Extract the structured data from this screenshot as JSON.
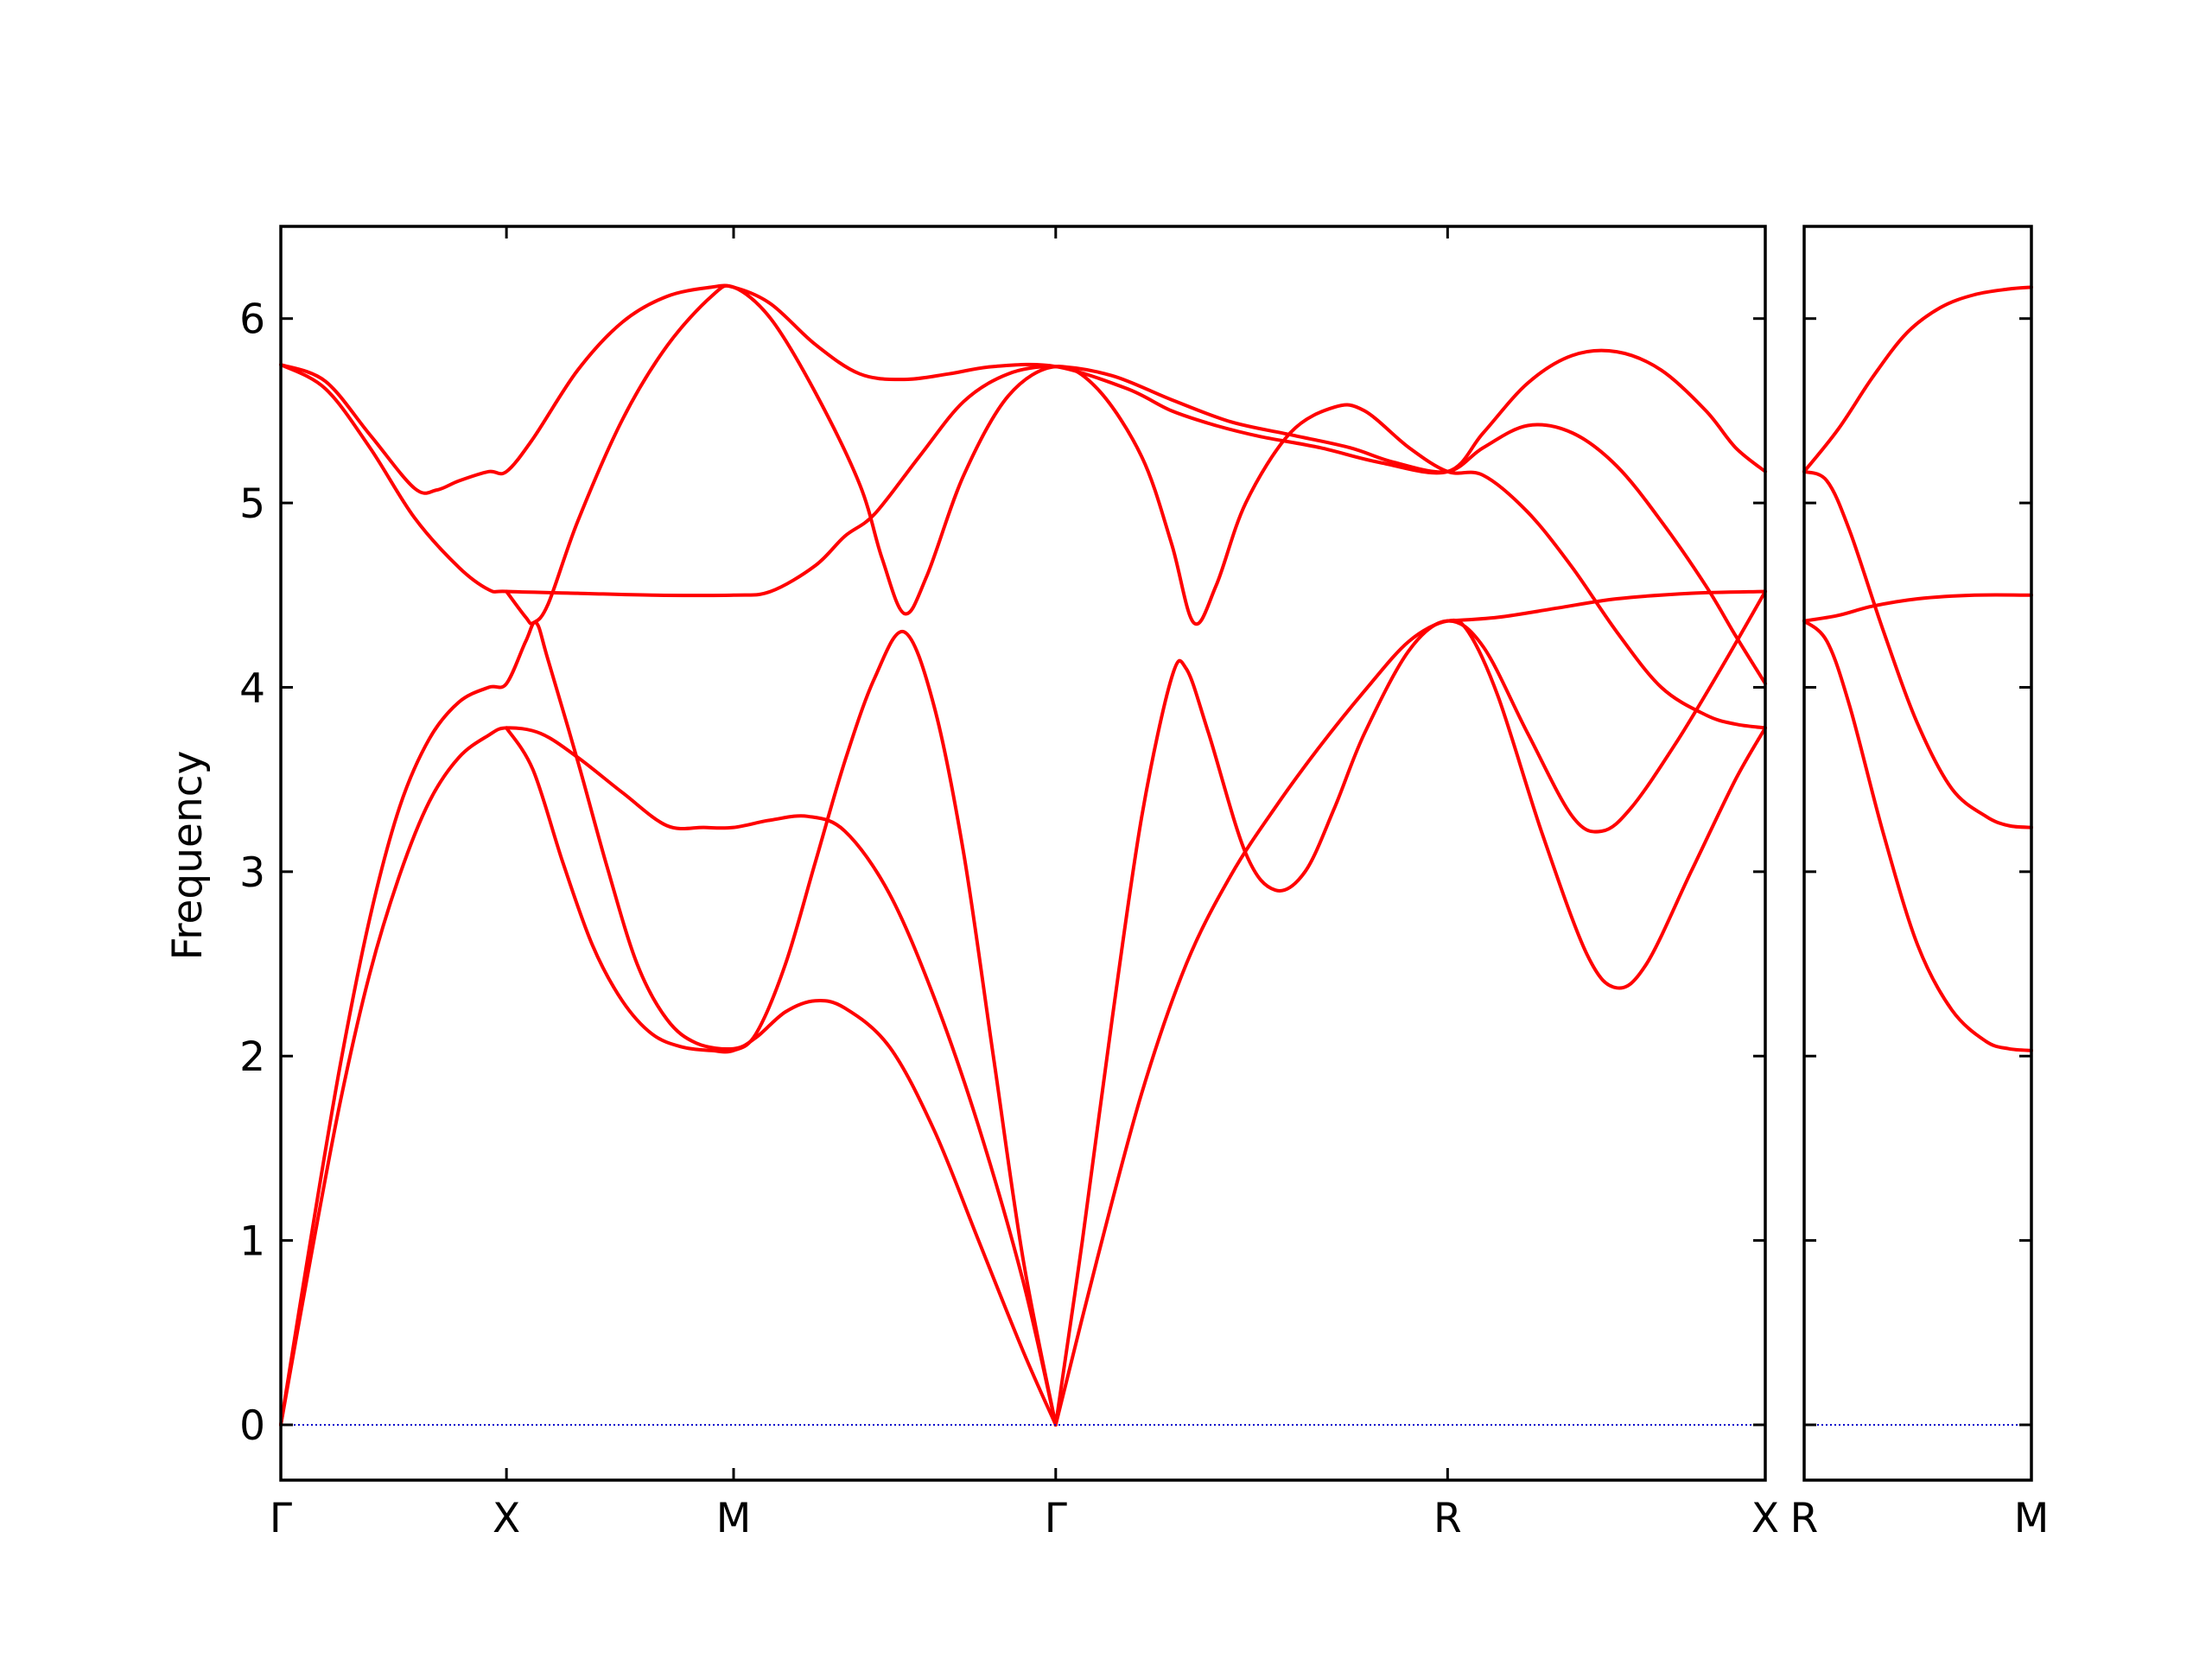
{
  "chart_data": {
    "type": "line",
    "ylabel": "Frequency",
    "xlabel": "",
    "title": "",
    "ylim": [
      -0.3,
      6.5
    ],
    "yticks": [
      0,
      1,
      2,
      3,
      4,
      5,
      6
    ],
    "ytick_labels": [
      "0",
      "1",
      "2",
      "3",
      "4",
      "5",
      "6"
    ],
    "grid": false,
    "legend": "none",
    "colors": {
      "bands": "#ff0000",
      "zero_line": "#0000cc",
      "axes": "#000000"
    },
    "panels": [
      {
        "id": "main",
        "xlim": [
          0,
          1
        ],
        "high_symmetry_points": [
          {
            "label": "Γ",
            "x": 0.0
          },
          {
            "label": "X",
            "x": 0.152
          },
          {
            "label": "M",
            "x": 0.305
          },
          {
            "label": "Γ",
            "x": 0.522
          },
          {
            "label": "R",
            "x": 0.786
          },
          {
            "label": "X",
            "x": 1.0
          }
        ],
        "branches": [
          [
            [
              0,
              0
            ],
            [
              0.02,
              0.9
            ],
            [
              0.04,
              1.75
            ],
            [
              0.06,
              2.45
            ],
            [
              0.08,
              2.98
            ],
            [
              0.1,
              3.38
            ],
            [
              0.12,
              3.62
            ],
            [
              0.14,
              3.74
            ],
            [
              0.152,
              3.78
            ],
            [
              0.175,
              3.75
            ],
            [
              0.2,
              3.62
            ],
            [
              0.23,
              3.43
            ],
            [
              0.26,
              3.25
            ],
            [
              0.285,
              3.24
            ],
            [
              0.305,
              3.24
            ],
            [
              0.33,
              3.28
            ],
            [
              0.355,
              3.3
            ],
            [
              0.38,
              3.22
            ],
            [
              0.41,
              2.88
            ],
            [
              0.44,
              2.32
            ],
            [
              0.47,
              1.62
            ],
            [
              0.5,
              0.78
            ],
            [
              0.522,
              0
            ]
          ],
          [
            [
              0,
              0
            ],
            [
              0.02,
              1.0
            ],
            [
              0.04,
              1.95
            ],
            [
              0.06,
              2.75
            ],
            [
              0.08,
              3.35
            ],
            [
              0.1,
              3.72
            ],
            [
              0.12,
              3.92
            ],
            [
              0.14,
              4.0
            ],
            [
              0.152,
              4.02
            ],
            [
              0.165,
              4.25
            ],
            [
              0.172,
              4.35
            ],
            [
              0.18,
              4.15
            ],
            [
              0.2,
              3.6
            ],
            [
              0.22,
              3.02
            ],
            [
              0.24,
              2.5
            ],
            [
              0.26,
              2.2
            ],
            [
              0.28,
              2.07
            ],
            [
              0.305,
              2.04
            ],
            [
              0.32,
              2.1
            ],
            [
              0.34,
              2.24
            ],
            [
              0.36,
              2.3
            ],
            [
              0.38,
              2.26
            ],
            [
              0.41,
              2.05
            ],
            [
              0.44,
              1.6
            ],
            [
              0.47,
              1.0
            ],
            [
              0.5,
              0.4
            ],
            [
              0.522,
              0
            ]
          ],
          [
            [
              0.152,
              3.78
            ],
            [
              0.17,
              3.55
            ],
            [
              0.19,
              3.05
            ],
            [
              0.21,
              2.6
            ],
            [
              0.23,
              2.3
            ],
            [
              0.25,
              2.12
            ],
            [
              0.27,
              2.05
            ],
            [
              0.29,
              2.03
            ],
            [
              0.305,
              2.03
            ],
            [
              0.32,
              2.12
            ],
            [
              0.34,
              2.5
            ],
            [
              0.36,
              3.05
            ],
            [
              0.38,
              3.6
            ],
            [
              0.4,
              4.05
            ],
            [
              0.42,
              4.3
            ],
            [
              0.44,
              3.9
            ],
            [
              0.46,
              3.1
            ],
            [
              0.48,
              2.0
            ],
            [
              0.5,
              0.9
            ],
            [
              0.522,
              0
            ]
          ],
          [
            [
              0,
              5.75
            ],
            [
              0.03,
              5.66
            ],
            [
              0.06,
              5.37
            ],
            [
              0.09,
              5.08
            ],
            [
              0.105,
              5.07
            ],
            [
              0.12,
              5.12
            ],
            [
              0.14,
              5.17
            ],
            [
              0.152,
              5.17
            ],
            [
              0.17,
              5.35
            ],
            [
              0.2,
              5.72
            ],
            [
              0.23,
              5.98
            ],
            [
              0.26,
              6.12
            ],
            [
              0.29,
              6.17
            ],
            [
              0.305,
              6.17
            ],
            [
              0.33,
              6.08
            ],
            [
              0.36,
              5.86
            ],
            [
              0.39,
              5.7
            ],
            [
              0.42,
              5.67
            ],
            [
              0.45,
              5.7
            ],
            [
              0.48,
              5.74
            ],
            [
              0.522,
              5.74
            ],
            [
              0.57,
              5.62
            ],
            [
              0.6,
              5.5
            ],
            [
              0.63,
              5.42
            ],
            [
              0.66,
              5.36
            ],
            [
              0.7,
              5.3
            ],
            [
              0.74,
              5.22
            ],
            [
              0.786,
              5.17
            ],
            [
              0.81,
              5.38
            ],
            [
              0.84,
              5.65
            ],
            [
              0.87,
              5.8
            ],
            [
              0.9,
              5.82
            ],
            [
              0.93,
              5.72
            ],
            [
              0.96,
              5.5
            ],
            [
              0.98,
              5.3
            ],
            [
              1.0,
              5.17
            ]
          ],
          [
            [
              0,
              5.75
            ],
            [
              0.03,
              5.62
            ],
            [
              0.06,
              5.3
            ],
            [
              0.09,
              4.92
            ],
            [
              0.12,
              4.65
            ],
            [
              0.14,
              4.53
            ],
            [
              0.152,
              4.52
            ],
            [
              0.2,
              4.51
            ],
            [
              0.25,
              4.5
            ],
            [
              0.305,
              4.5
            ],
            [
              0.33,
              4.52
            ],
            [
              0.36,
              4.66
            ],
            [
              0.38,
              4.82
            ],
            [
              0.4,
              4.94
            ],
            [
              0.43,
              5.25
            ],
            [
              0.46,
              5.55
            ],
            [
              0.49,
              5.7
            ],
            [
              0.522,
              5.74
            ],
            [
              0.56,
              5.69
            ],
            [
              0.6,
              5.56
            ],
            [
              0.64,
              5.44
            ],
            [
              0.68,
              5.37
            ],
            [
              0.72,
              5.3
            ],
            [
              0.75,
              5.22
            ],
            [
              0.786,
              5.17
            ],
            [
              0.81,
              5.3
            ],
            [
              0.84,
              5.42
            ],
            [
              0.87,
              5.38
            ],
            [
              0.9,
              5.2
            ],
            [
              0.93,
              4.9
            ],
            [
              0.96,
              4.55
            ],
            [
              0.98,
              4.28
            ],
            [
              1.0,
              4.02
            ]
          ],
          [
            [
              0.152,
              4.52
            ],
            [
              0.165,
              4.38
            ],
            [
              0.17,
              4.35
            ],
            [
              0.18,
              4.45
            ],
            [
              0.2,
              4.9
            ],
            [
              0.23,
              5.45
            ],
            [
              0.26,
              5.85
            ],
            [
              0.29,
              6.12
            ],
            [
              0.305,
              6.17
            ],
            [
              0.33,
              6.0
            ],
            [
              0.36,
              5.6
            ],
            [
              0.39,
              5.1
            ],
            [
              0.405,
              4.7
            ],
            [
              0.42,
              4.4
            ],
            [
              0.435,
              4.6
            ],
            [
              0.46,
              5.15
            ],
            [
              0.49,
              5.58
            ],
            [
              0.522,
              5.74
            ],
            [
              0.55,
              5.62
            ],
            [
              0.58,
              5.25
            ],
            [
              0.6,
              4.78
            ],
            [
              0.615,
              4.35
            ],
            [
              0.63,
              4.55
            ],
            [
              0.65,
              5.0
            ],
            [
              0.68,
              5.38
            ],
            [
              0.71,
              5.52
            ],
            [
              0.73,
              5.5
            ],
            [
              0.76,
              5.3
            ],
            [
              0.786,
              5.17
            ],
            [
              0.81,
              5.15
            ],
            [
              0.84,
              4.95
            ],
            [
              0.87,
              4.65
            ],
            [
              0.9,
              4.3
            ],
            [
              0.93,
              4.0
            ],
            [
              0.96,
              3.85
            ],
            [
              0.98,
              3.8
            ],
            [
              1.0,
              3.78
            ]
          ],
          [
            [
              0.522,
              0
            ],
            [
              0.54,
              1.0
            ],
            [
              0.56,
              2.2
            ],
            [
              0.58,
              3.3
            ],
            [
              0.6,
              4.05
            ],
            [
              0.61,
              4.1
            ],
            [
              0.625,
              3.75
            ],
            [
              0.65,
              3.1
            ],
            [
              0.67,
              2.9
            ],
            [
              0.69,
              3.0
            ],
            [
              0.71,
              3.35
            ],
            [
              0.73,
              3.75
            ],
            [
              0.76,
              4.2
            ],
            [
              0.786,
              4.36
            ],
            [
              0.81,
              4.22
            ],
            [
              0.84,
              3.75
            ],
            [
              0.87,
              3.3
            ],
            [
              0.89,
              3.22
            ],
            [
              0.91,
              3.35
            ],
            [
              0.94,
              3.7
            ],
            [
              0.97,
              4.1
            ],
            [
              1.0,
              4.52
            ]
          ],
          [
            [
              0.522,
              0
            ],
            [
              0.55,
              0.9
            ],
            [
              0.58,
              1.8
            ],
            [
              0.61,
              2.5
            ],
            [
              0.64,
              2.98
            ],
            [
              0.67,
              3.35
            ],
            [
              0.7,
              3.68
            ],
            [
              0.73,
              3.98
            ],
            [
              0.76,
              4.25
            ],
            [
              0.786,
              4.36
            ],
            [
              0.8,
              4.3
            ],
            [
              0.82,
              3.95
            ],
            [
              0.85,
              3.2
            ],
            [
              0.88,
              2.55
            ],
            [
              0.9,
              2.37
            ],
            [
              0.92,
              2.5
            ],
            [
              0.95,
              3.0
            ],
            [
              0.98,
              3.5
            ],
            [
              1.0,
              3.78
            ]
          ],
          [
            [
              0.786,
              4.36
            ],
            [
              0.82,
              4.38
            ],
            [
              0.86,
              4.43
            ],
            [
              0.9,
              4.48
            ],
            [
              0.95,
              4.51
            ],
            [
              1.0,
              4.52
            ]
          ]
        ]
      },
      {
        "id": "side",
        "xlim": [
          0,
          1
        ],
        "high_symmetry_points": [
          {
            "label": "R",
            "x": 0.0
          },
          {
            "label": "M",
            "x": 1.0
          }
        ],
        "branches": [
          [
            [
              0,
              5.17
            ],
            [
              0.15,
              5.4
            ],
            [
              0.3,
              5.68
            ],
            [
              0.45,
              5.92
            ],
            [
              0.6,
              6.06
            ],
            [
              0.75,
              6.13
            ],
            [
              0.9,
              6.16
            ],
            [
              1.0,
              6.17
            ]
          ],
          [
            [
              0,
              5.17
            ],
            [
              0.1,
              5.12
            ],
            [
              0.2,
              4.85
            ],
            [
              0.35,
              4.3
            ],
            [
              0.5,
              3.8
            ],
            [
              0.65,
              3.45
            ],
            [
              0.8,
              3.3
            ],
            [
              0.9,
              3.25
            ],
            [
              1.0,
              3.24
            ]
          ],
          [
            [
              0,
              4.36
            ],
            [
              0.15,
              4.39
            ],
            [
              0.3,
              4.44
            ],
            [
              0.5,
              4.48
            ],
            [
              0.75,
              4.5
            ],
            [
              1.0,
              4.5
            ]
          ],
          [
            [
              0,
              4.36
            ],
            [
              0.1,
              4.25
            ],
            [
              0.2,
              3.9
            ],
            [
              0.35,
              3.2
            ],
            [
              0.5,
              2.6
            ],
            [
              0.65,
              2.25
            ],
            [
              0.8,
              2.08
            ],
            [
              0.9,
              2.04
            ],
            [
              1.0,
              2.03
            ]
          ]
        ]
      }
    ]
  }
}
